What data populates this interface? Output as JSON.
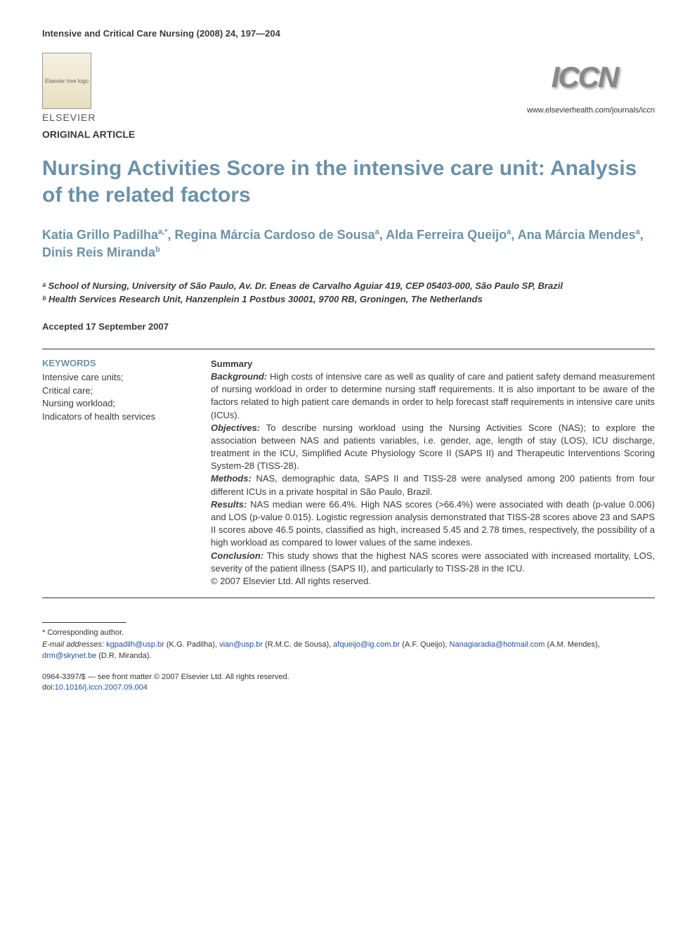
{
  "journal_ref": "Intensive and Critical Care Nursing (2008) 24, 197—204",
  "publisher": {
    "name": "ELSEVIER",
    "logo_alt": "Elsevier tree logo"
  },
  "journal_logo": "ICCN",
  "journal_url": "www.elsevierhealth.com/journals/iccn",
  "article_type": "ORIGINAL ARTICLE",
  "title": "Nursing Activities Score in the intensive care unit: Analysis of the related factors",
  "authors_html": "Katia Grillo Padilha<sup>a,*</sup>, Regina Márcia Cardoso de Sousa<sup>a</sup>, Alda Ferreira Queijo<sup>a</sup>, Ana Márcia Mendes<sup>a</sup>, Dinis Reis Miranda<sup>b</sup>",
  "affiliations": [
    "ᵃ School of Nursing, University of São Paulo, Av. Dr. Eneas de Carvalho Aguiar 419, CEP 05403-000, São Paulo SP, Brazil",
    "ᵇ Health Services Research Unit, Hanzenplein 1 Postbus 30001, 9700 RB, Groningen, The Netherlands"
  ],
  "accepted": "Accepted 17 September 2007",
  "keywords": {
    "heading": "KEYWORDS",
    "items": [
      "Intensive care units;",
      "Critical care;",
      "Nursing workload;",
      "Indicators of health services"
    ]
  },
  "summary": {
    "heading": "Summary",
    "sections": [
      {
        "label": "Background:",
        "text": " High costs of intensive care as well as quality of care and patient safety demand measurement of nursing workload in order to determine nursing staff requirements. It is also important to be aware of the factors related to high patient care demands in order to help forecast staff requirements in intensive care units (ICUs)."
      },
      {
        "label": "Objectives:",
        "text": " To describe nursing workload using the Nursing Activities Score (NAS); to explore the association between NAS and patients variables, i.e. gender, age, length of stay (LOS), ICU discharge, treatment in the ICU, Simplified Acute Physiology Score II (SAPS II) and Therapeutic Interventions Scoring System-28 (TISS-28)."
      },
      {
        "label": "Methods:",
        "text": " NAS, demographic data, SAPS II and TISS-28 were analysed among 200 patients from four different ICUs in a private hospital in São Paulo, Brazil."
      },
      {
        "label": "Results:",
        "text": " NAS median were 66.4%. High NAS scores (>66.4%) were associated with death (p-value 0.006) and LOS (p-value 0.015). Logistic regression analysis demonstrated that TISS-28 scores above 23 and SAPS II scores above 46.5 points, classified as high, increased 5.45 and 2.78 times, respectively, the possibility of a high workload as compared to lower values of the same indexes."
      },
      {
        "label": "Conclusion:",
        "text": " This study shows that the highest NAS scores were associated with increased mortality, LOS, severity of the patient illness (SAPS II), and particularly to TISS-28 in the ICU."
      }
    ],
    "copyright": "© 2007 Elsevier Ltd. All rights reserved."
  },
  "footnotes": {
    "corr": "* Corresponding author.",
    "emails_label": "E-mail addresses:",
    "emails": [
      {
        "addr": "kgpadilh@usp.br",
        "who": " (K.G. Padilha), "
      },
      {
        "addr": "vian@usp.br",
        "who": " (R.M.C. de Sousa), "
      },
      {
        "addr": "afqueijo@ig.com.br",
        "who": " (A.F. Queijo), "
      },
      {
        "addr": "Nanagiaradia@hotmail.com",
        "who": " (A.M. Mendes), "
      },
      {
        "addr": "drm@skynet.be",
        "who": " (D.R. Miranda)."
      }
    ]
  },
  "bottom": {
    "issn": "0964-3397/$ — see front matter © 2007 Elsevier Ltd. All rights reserved.",
    "doi_label": "doi:",
    "doi": "10.1016/j.iccn.2007.09.004"
  },
  "colors": {
    "heading_blue": "#6a91a9",
    "text": "#3a3a3a",
    "link": "#1c4fa3",
    "background": "#ffffff"
  },
  "typography": {
    "title_fontsize_pt": 22,
    "authors_fontsize_pt": 14,
    "body_fontsize_pt": 10,
    "footnote_fontsize_pt": 8,
    "font_family": "Arial, sans-serif"
  }
}
